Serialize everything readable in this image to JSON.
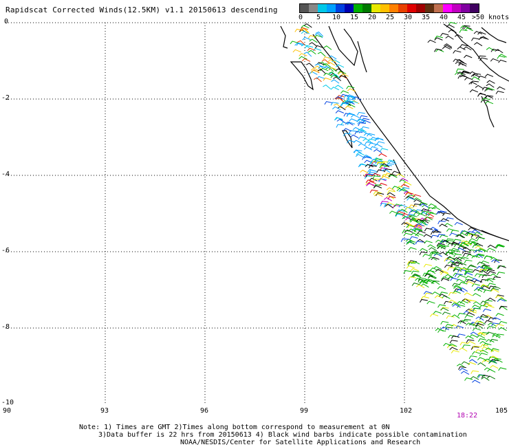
{
  "title": "Rapidscat Corrected Winds(12.5KM) v1.1 20150613 descending",
  "colorbar": {
    "colors": [
      "#555555",
      "#888888",
      "#00c8e8",
      "#00a0ff",
      "#0040e0",
      "#0000b0",
      "#00b000",
      "#007800",
      "#e8e800",
      "#ffc000",
      "#ff8000",
      "#e84000",
      "#e00000",
      "#a00000",
      "#603010",
      "#c07050",
      "#ff00ff",
      "#c000c0",
      "#8000a0",
      "#400060"
    ],
    "labels": [
      "0",
      "5",
      "10",
      "15",
      "20",
      "25",
      "30",
      "35",
      "40",
      "45",
      ">50 knots"
    ]
  },
  "axes": {
    "y_ticks": [
      "0",
      "-2",
      "-4",
      "-6",
      "-8",
      "-10"
    ],
    "x_ticks": [
      "90",
      "93",
      "96",
      "99",
      "102",
      "105"
    ]
  },
  "timestamp": "18:22",
  "notes": {
    "line1": "Note: 1) Times are GMT 2)Times along bottom correspond to measurement at 0N",
    "line2": "3)Data buffer is 22 hrs from 20150613 4) Black wind barbs indicate possible contamination",
    "line3": "NOAA/NESDIS/Center for Satellite Applications and Research"
  }
}
